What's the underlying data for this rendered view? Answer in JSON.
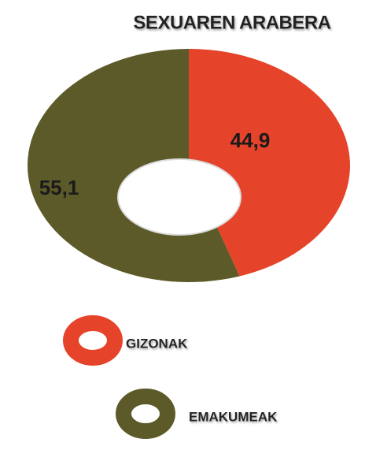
{
  "chart_data": {
    "type": "donut",
    "title": "SEXUAREN ARABERA",
    "categories": [
      "GIZONAK",
      "EMAKUMEAK"
    ],
    "values": [
      44.9,
      55.1
    ],
    "value_labels": [
      "44,9",
      "55,1"
    ],
    "colors": [
      "#e5432a",
      "#5d5a29"
    ]
  }
}
